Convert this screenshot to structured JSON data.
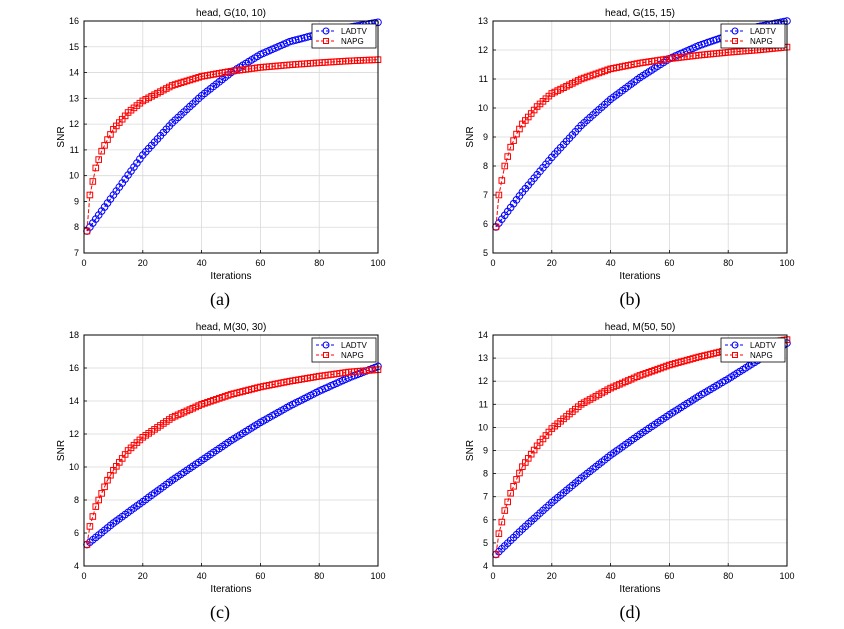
{
  "colors": {
    "ladtv": "#0000ff",
    "napg": "#ff0000",
    "grid": "#d9d9d9",
    "axis": "#000000"
  },
  "chart_data": [
    {
      "type": "line",
      "title": "head, G(10, 10)",
      "caption": "(a)",
      "xlabel": "Iterations",
      "ylabel": "SNR",
      "xlim": [
        0,
        100
      ],
      "ylim": [
        7,
        16
      ],
      "xticks": [
        "0",
        "20",
        "40",
        "60",
        "80",
        "100"
      ],
      "yticks": [
        "7",
        "8",
        "9",
        "10",
        "11",
        "12",
        "13",
        "14",
        "15",
        "16"
      ],
      "legend": {
        "position": "top-right",
        "entries": [
          "LADTV",
          "NAPG"
        ]
      },
      "series": [
        {
          "name": "LADTV",
          "marker": "circle",
          "x": [
            1,
            10,
            20,
            30,
            40,
            50,
            60,
            70,
            80,
            90,
            100
          ],
          "values": [
            7.85,
            9.25,
            10.8,
            12.05,
            13.1,
            14.0,
            14.7,
            15.2,
            15.5,
            15.75,
            15.95
          ]
        },
        {
          "name": "NAPG",
          "marker": "square",
          "x": [
            1,
            2,
            4,
            6,
            8,
            10,
            15,
            20,
            30,
            40,
            50,
            60,
            70,
            80,
            90,
            100
          ],
          "values": [
            7.85,
            9.25,
            10.3,
            10.95,
            11.4,
            11.8,
            12.45,
            12.9,
            13.5,
            13.85,
            14.05,
            14.2,
            14.3,
            14.38,
            14.45,
            14.5
          ]
        }
      ]
    },
    {
      "type": "line",
      "title": "head, G(15, 15)",
      "caption": "(b)",
      "xlabel": "Iterations",
      "ylabel": "SNR",
      "xlim": [
        0,
        100
      ],
      "ylim": [
        5,
        13
      ],
      "xticks": [
        "0",
        "20",
        "40",
        "60",
        "80",
        "100"
      ],
      "yticks": [
        "5",
        "6",
        "7",
        "8",
        "9",
        "10",
        "11",
        "12",
        "13"
      ],
      "legend": {
        "position": "top-right",
        "entries": [
          "LADTV",
          "NAPG"
        ]
      },
      "series": [
        {
          "name": "LADTV",
          "marker": "circle",
          "x": [
            1,
            10,
            20,
            30,
            40,
            50,
            60,
            70,
            80,
            90,
            100
          ],
          "values": [
            5.9,
            7.1,
            8.3,
            9.4,
            10.3,
            11.05,
            11.7,
            12.15,
            12.5,
            12.8,
            13.0
          ]
        },
        {
          "name": "NAPG",
          "marker": "square",
          "x": [
            1,
            2,
            4,
            6,
            8,
            10,
            15,
            20,
            30,
            40,
            50,
            60,
            70,
            80,
            90,
            100
          ],
          "values": [
            5.9,
            7.0,
            8.0,
            8.65,
            9.1,
            9.45,
            10.05,
            10.5,
            11.0,
            11.35,
            11.55,
            11.7,
            11.82,
            11.92,
            12.0,
            12.1
          ]
        }
      ]
    },
    {
      "type": "line",
      "title": "head, M(30, 30)",
      "caption": "(c)",
      "xlabel": "Iterations",
      "ylabel": "SNR",
      "xlim": [
        0,
        100
      ],
      "ylim": [
        4,
        18
      ],
      "xticks": [
        "0",
        "20",
        "40",
        "60",
        "80",
        "100"
      ],
      "yticks": [
        "4",
        "6",
        "8",
        "10",
        "12",
        "14",
        "16",
        "18"
      ],
      "legend": {
        "position": "top-right",
        "entries": [
          "LADTV",
          "NAPG"
        ]
      },
      "series": [
        {
          "name": "LADTV",
          "marker": "circle",
          "x": [
            1,
            10,
            20,
            30,
            40,
            50,
            60,
            70,
            80,
            90,
            100
          ],
          "values": [
            5.3,
            6.6,
            7.9,
            9.2,
            10.4,
            11.6,
            12.7,
            13.7,
            14.6,
            15.4,
            16.1
          ]
        },
        {
          "name": "NAPG",
          "marker": "square",
          "x": [
            1,
            2,
            4,
            6,
            8,
            10,
            15,
            20,
            30,
            40,
            50,
            60,
            70,
            80,
            90,
            100
          ],
          "values": [
            5.3,
            6.4,
            7.6,
            8.4,
            9.2,
            9.8,
            11.0,
            11.8,
            13.0,
            13.8,
            14.4,
            14.85,
            15.2,
            15.5,
            15.75,
            15.9
          ]
        }
      ]
    },
    {
      "type": "line",
      "title": "head, M(50, 50)",
      "caption": "(d)",
      "xlabel": "Iterations",
      "ylabel": "SNR",
      "xlim": [
        0,
        100
      ],
      "ylim": [
        4,
        14
      ],
      "xticks": [
        "0",
        "20",
        "40",
        "60",
        "80",
        "100"
      ],
      "yticks": [
        "4",
        "5",
        "6",
        "7",
        "8",
        "9",
        "10",
        "11",
        "12",
        "13",
        "14"
      ],
      "legend": {
        "position": "top-right",
        "entries": [
          "LADTV",
          "NAPG"
        ]
      },
      "series": [
        {
          "name": "LADTV",
          "marker": "circle",
          "x": [
            1,
            10,
            20,
            30,
            40,
            50,
            60,
            70,
            80,
            90,
            100
          ],
          "values": [
            4.5,
            5.6,
            6.75,
            7.8,
            8.8,
            9.7,
            10.55,
            11.35,
            12.1,
            12.9,
            13.65
          ]
        },
        {
          "name": "NAPG",
          "marker": "square",
          "x": [
            1,
            2,
            4,
            6,
            8,
            10,
            15,
            20,
            30,
            40,
            50,
            60,
            70,
            80,
            90,
            100
          ],
          "values": [
            4.5,
            5.4,
            6.4,
            7.15,
            7.75,
            8.3,
            9.2,
            9.95,
            11.0,
            11.7,
            12.25,
            12.7,
            13.05,
            13.35,
            13.6,
            13.8
          ]
        }
      ]
    }
  ]
}
